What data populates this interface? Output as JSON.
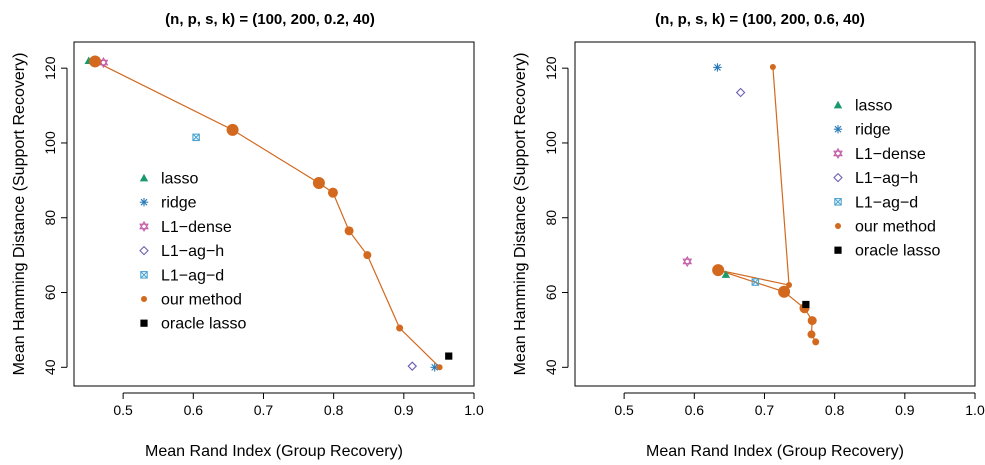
{
  "chart_data": [
    {
      "type": "scatter",
      "title": "(n, p, s, k) = (100, 200, 0.2, 40)",
      "xlabel": "Mean Rand Index (Group Recovery)",
      "ylabel": "Mean Hamming Distance (Support Recovery)",
      "xlim": [
        0.43,
        1.0
      ],
      "ylim": [
        35,
        127
      ],
      "xticks": [
        "0.5",
        "0.6",
        "0.7",
        "0.8",
        "0.9",
        "1.0"
      ],
      "yticks": [
        "40",
        "60",
        "80",
        "100",
        "120"
      ],
      "grid": false,
      "legend_position": "center-left",
      "series": [
        {
          "name": "lasso",
          "marker": "triangle",
          "color": "#1a9a6c",
          "x": [
            0.451
          ],
          "y": [
            122
          ]
        },
        {
          "name": "ridge",
          "marker": "asterisk",
          "color": "#2a7ab8",
          "x": [
            0.944
          ],
          "y": [
            40
          ]
        },
        {
          "name": "L1−dense",
          "marker": "star",
          "color": "#c45ca8",
          "x": [
            0.472
          ],
          "y": [
            121.5
          ]
        },
        {
          "name": "L1−ag−h",
          "marker": "diamond",
          "color": "#6a5fb5",
          "x": [
            0.912
          ],
          "y": [
            40.3
          ]
        },
        {
          "name": "L1−ag−d",
          "marker": "boxed-x",
          "color": "#4aa3d0",
          "x": [
            0.604
          ],
          "y": [
            101.5
          ]
        },
        {
          "name": "our method",
          "marker": "dot",
          "color": "#d2691e",
          "x": [
            0.46,
            0.656,
            0.779,
            0.799,
            0.822,
            0.848,
            0.894,
            0.951
          ],
          "y": [
            121.8,
            103.5,
            89.3,
            86.7,
            76.5,
            70,
            50.5,
            40
          ],
          "sizes": [
            6,
            6,
            6,
            5,
            4.5,
            4,
            3.5,
            3
          ]
        },
        {
          "name": "oracle lasso",
          "marker": "square",
          "color": "#000000",
          "x": [
            0.964
          ],
          "y": [
            43
          ]
        }
      ]
    },
    {
      "type": "scatter",
      "title": "(n, p, s, k) = (100, 200, 0.6, 40)",
      "xlabel": "Mean Rand Index (Group Recovery)",
      "ylabel": "Mean Hamming Distance (Support Recovery)",
      "xlim": [
        0.43,
        1.0
      ],
      "ylim": [
        35,
        127
      ],
      "xticks": [
        "0.5",
        "0.6",
        "0.7",
        "0.8",
        "0.9",
        "1.0"
      ],
      "yticks": [
        "40",
        "60",
        "80",
        "100",
        "120"
      ],
      "grid": false,
      "legend_position": "top-right",
      "series": [
        {
          "name": "lasso",
          "marker": "triangle",
          "color": "#1a9a6c",
          "x": [
            0.645
          ],
          "y": [
            64.8
          ]
        },
        {
          "name": "ridge",
          "marker": "asterisk",
          "color": "#2a7ab8",
          "x": [
            0.633
          ],
          "y": [
            120.2
          ]
        },
        {
          "name": "L1−dense",
          "marker": "star",
          "color": "#c45ca8",
          "x": [
            0.59
          ],
          "y": [
            68.3
          ]
        },
        {
          "name": "L1−ag−h",
          "marker": "diamond",
          "color": "#6a5fb5",
          "x": [
            0.666
          ],
          "y": [
            113.5
          ]
        },
        {
          "name": "L1−ag−d",
          "marker": "boxed-x",
          "color": "#4aa3d0",
          "x": [
            0.687
          ],
          "y": [
            62.8
          ]
        },
        {
          "name": "our method",
          "marker": "dot",
          "color": "#d2691e",
          "x": [
            0.712,
            0.735,
            0.634,
            0.728,
            0.757,
            0.768,
            0.767,
            0.773
          ],
          "y": [
            120.3,
            62,
            66,
            60.2,
            55.8,
            52.5,
            48.8,
            46.8
          ],
          "sizes": [
            3,
            3,
            6,
            6,
            5,
            4.5,
            4,
            3.5
          ]
        },
        {
          "name": "oracle lasso",
          "marker": "square",
          "color": "#000000",
          "x": [
            0.759
          ],
          "y": [
            56.8
          ]
        }
      ]
    }
  ]
}
